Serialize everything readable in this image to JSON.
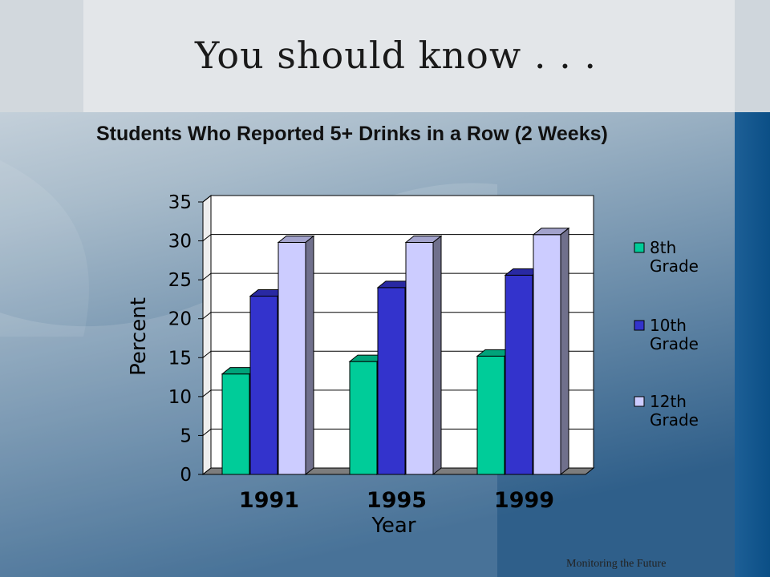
{
  "slide": {
    "title": "You should know . . .",
    "source": "Monitoring the Future"
  },
  "colors": {
    "background_top": "#e6e9ec",
    "background_bottom": "#2f5f8a",
    "accent_bar": "#0b4f86",
    "plot_bg": "#ffffff",
    "floor": "#7d7d7d"
  },
  "chart_data": {
    "type": "bar",
    "title": "Students Who Reported 5+ Drinks in a Row (2 Weeks)",
    "xlabel": "Year",
    "ylabel": "Percent",
    "categories": [
      "1991",
      "1995",
      "1999"
    ],
    "ylim": [
      0,
      35
    ],
    "yticks": [
      0,
      5,
      10,
      15,
      20,
      25,
      30,
      35
    ],
    "grid": true,
    "legend": "right",
    "series": [
      {
        "name": "8th Grade",
        "values": [
          12.9,
          14.5,
          15.2
        ],
        "color": "#00cc99"
      },
      {
        "name": "10th Grade",
        "values": [
          22.9,
          24.0,
          25.6
        ],
        "color": "#3333cc"
      },
      {
        "name": "12th Grade",
        "values": [
          29.8,
          29.8,
          30.8
        ],
        "color": "#ccccff"
      }
    ]
  }
}
